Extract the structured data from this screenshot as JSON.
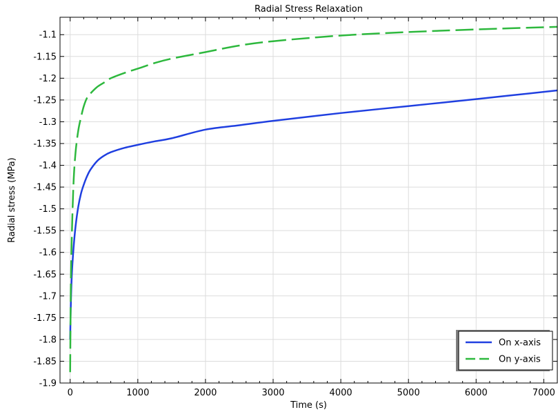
{
  "chart_data": {
    "type": "line",
    "title": "Radial Stress Relaxation",
    "xlabel": "Time (s)",
    "ylabel": "Radial stress (MPa)",
    "xlim": [
      -150,
      7200
    ],
    "ylim": [
      -1.9,
      -1.06
    ],
    "xticks": [
      0,
      1000,
      2000,
      3000,
      4000,
      5000,
      6000,
      7000
    ],
    "yticks": [
      -1.1,
      -1.15,
      -1.2,
      -1.25,
      -1.3,
      -1.35,
      -1.4,
      -1.45,
      -1.5,
      -1.55,
      -1.6,
      -1.65,
      -1.7,
      -1.75,
      -1.8,
      -1.85,
      -1.9
    ],
    "grid": true,
    "legend_position": "bottom-right",
    "series": [
      {
        "name": "On x-axis",
        "color": "#1f3fe0",
        "style": "solid",
        "x": [
          0,
          10,
          25,
          50,
          80,
          120,
          160,
          200,
          250,
          300,
          400,
          500,
          600,
          800,
          1000,
          1250,
          1500,
          2000,
          2500,
          3000,
          4000,
          5000,
          6000,
          7200
        ],
        "y": [
          -1.8,
          -1.72,
          -1.65,
          -1.59,
          -1.54,
          -1.495,
          -1.465,
          -1.445,
          -1.425,
          -1.41,
          -1.39,
          -1.378,
          -1.37,
          -1.36,
          -1.353,
          -1.345,
          -1.338,
          -1.318,
          -1.308,
          -1.298,
          -1.28,
          -1.264,
          -1.248,
          -1.228
        ]
      },
      {
        "name": "On y-axis",
        "color": "#2db83d",
        "style": "dashed",
        "x": [
          0,
          10,
          25,
          50,
          80,
          120,
          160,
          200,
          250,
          300,
          400,
          500,
          600,
          800,
          1000,
          1250,
          1500,
          2000,
          2500,
          3000,
          4000,
          5000,
          6000,
          7200
        ],
        "y": [
          -1.875,
          -1.68,
          -1.56,
          -1.44,
          -1.37,
          -1.32,
          -1.29,
          -1.265,
          -1.245,
          -1.235,
          -1.22,
          -1.21,
          -1.2,
          -1.188,
          -1.178,
          -1.165,
          -1.155,
          -1.14,
          -1.125,
          -1.115,
          -1.102,
          -1.094,
          -1.088,
          -1.082
        ]
      }
    ]
  }
}
